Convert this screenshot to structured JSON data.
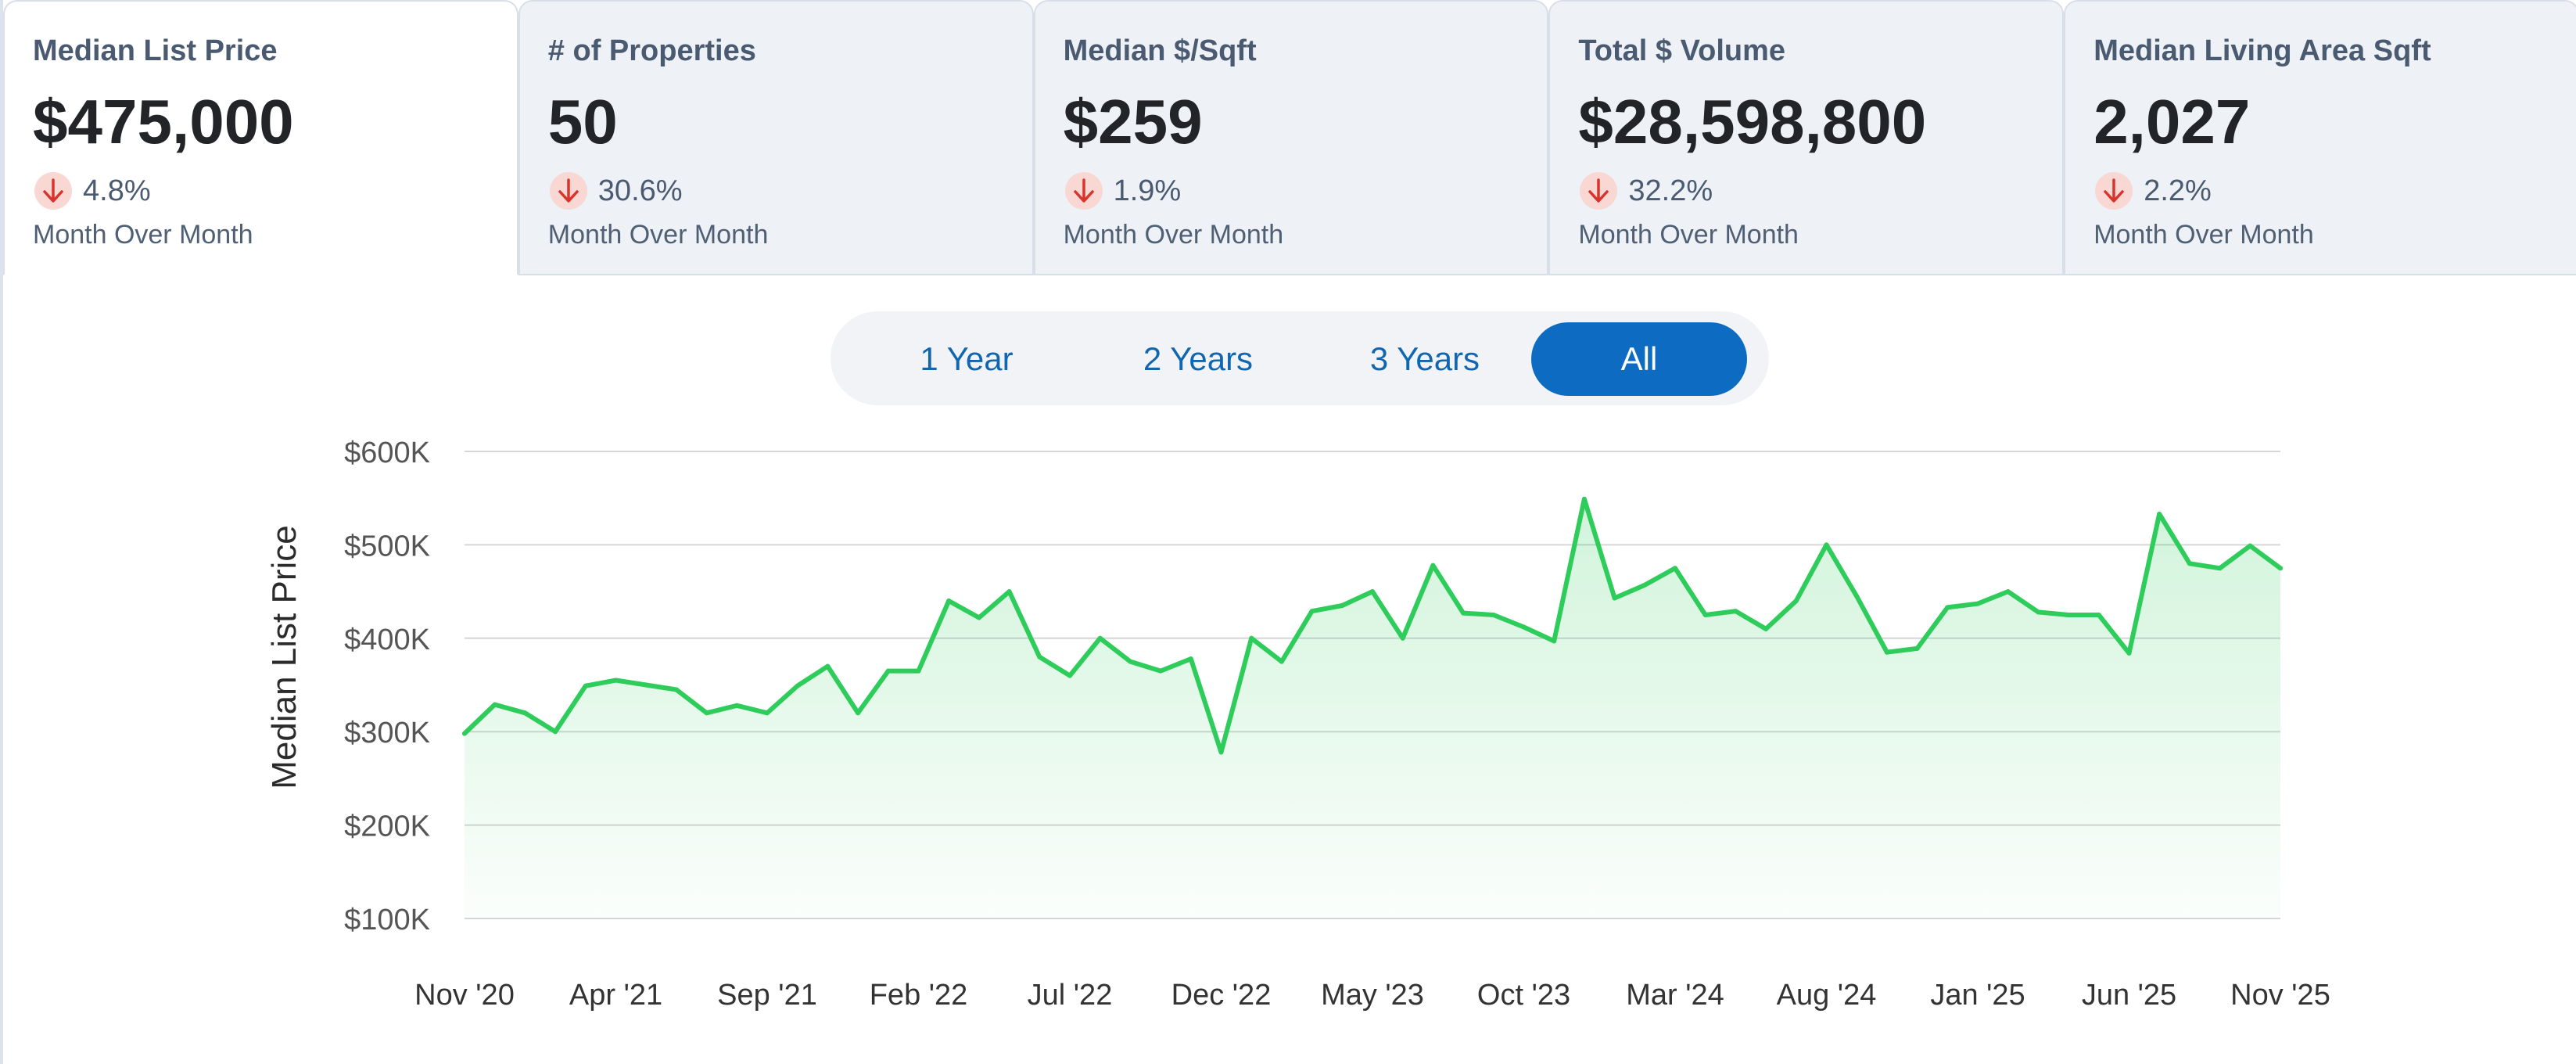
{
  "kpis": [
    {
      "title": "Median List Price",
      "value": "$475,000",
      "change": "4.8%",
      "caption": "Month Over Month",
      "direction": "down",
      "active": true
    },
    {
      "title": "# of Properties",
      "value": "50",
      "change": "30.6%",
      "caption": "Month Over Month",
      "direction": "down",
      "active": false
    },
    {
      "title": "Median $/Sqft",
      "value": "$259",
      "change": "1.9%",
      "caption": "Month Over Month",
      "direction": "down",
      "active": false
    },
    {
      "title": "Total $ Volume",
      "value": "$28,598,800",
      "change": "32.2%",
      "caption": "Month Over Month",
      "direction": "down",
      "active": false
    },
    {
      "title": "Median Living Area Sqft",
      "value": "2,027",
      "change": "2.2%",
      "caption": "Month Over Month",
      "direction": "down",
      "active": false
    }
  ],
  "range": {
    "options": [
      "1 Year",
      "2 Years",
      "3 Years",
      "All"
    ],
    "selected": "All"
  },
  "colors": {
    "line": "#2ecc5a",
    "fill": "#2ecc5a",
    "grid": "#d6d6d6",
    "accent": "#0d6cc2",
    "down": "#d9342b",
    "down_bg": "#f9d8d4"
  },
  "chart_data": {
    "type": "area",
    "title": "",
    "xlabel": "",
    "ylabel": "Median List Price",
    "x_tick_labels": [
      "Nov '20",
      "Apr '21",
      "Sep '21",
      "Feb '22",
      "Jul '22",
      "Dec '22",
      "May '23",
      "Oct '23",
      "Mar '24",
      "Aug '24",
      "Jan '25",
      "Jun '25",
      "Nov '25"
    ],
    "y_tick_labels": [
      "$100K",
      "$200K",
      "$300K",
      "$400K",
      "$500K",
      "$600K"
    ],
    "y_ticks": [
      100000,
      200000,
      300000,
      400000,
      500000,
      600000
    ],
    "ylim": [
      100000,
      600000
    ],
    "grid": true,
    "legend": "none",
    "x": [
      "Nov '20",
      "Dec '20",
      "Jan '21",
      "Feb '21",
      "Mar '21",
      "Apr '21",
      "May '21",
      "Jun '21",
      "Jul '21",
      "Aug '21",
      "Sep '21",
      "Oct '21",
      "Nov '21",
      "Dec '21",
      "Jan '22",
      "Feb '22",
      "Mar '22",
      "Apr '22",
      "May '22",
      "Jun '22",
      "Jul '22",
      "Aug '22",
      "Sep '22",
      "Oct '22",
      "Nov '22",
      "Dec '22",
      "Jan '23",
      "Feb '23",
      "Mar '23",
      "Apr '23",
      "May '23",
      "Jun '23",
      "Jul '23",
      "Aug '23",
      "Sep '23",
      "Oct '23",
      "Nov '23",
      "Dec '23",
      "Jan '24",
      "Feb '24",
      "Mar '24",
      "Apr '24",
      "May '24",
      "Jun '24",
      "Jul '24",
      "Aug '24",
      "Sep '24",
      "Oct '24",
      "Nov '24",
      "Dec '24",
      "Jan '25",
      "Feb '25",
      "Mar '25",
      "Apr '25",
      "May '25",
      "Jun '25",
      "Jul '25",
      "Aug '25",
      "Sep '25",
      "Oct '25",
      "Nov '25"
    ],
    "series": [
      {
        "name": "Median List Price",
        "values": [
          298000,
          329000,
          320000,
          300000,
          349000,
          355000,
          350000,
          345000,
          320000,
          328000,
          320000,
          349000,
          370000,
          320000,
          365000,
          365000,
          440000,
          422000,
          450000,
          380000,
          360000,
          400000,
          375000,
          365000,
          378000,
          278000,
          400000,
          375000,
          429000,
          435000,
          450000,
          400000,
          478000,
          427000,
          425000,
          412000,
          397000,
          549000,
          443000,
          457000,
          475000,
          425000,
          429000,
          410000,
          440000,
          500000,
          445000,
          385000,
          389000,
          433000,
          437000,
          450000,
          428000,
          425000,
          425000,
          384000,
          533000,
          480000,
          475000,
          499000,
          475000
        ]
      }
    ]
  }
}
